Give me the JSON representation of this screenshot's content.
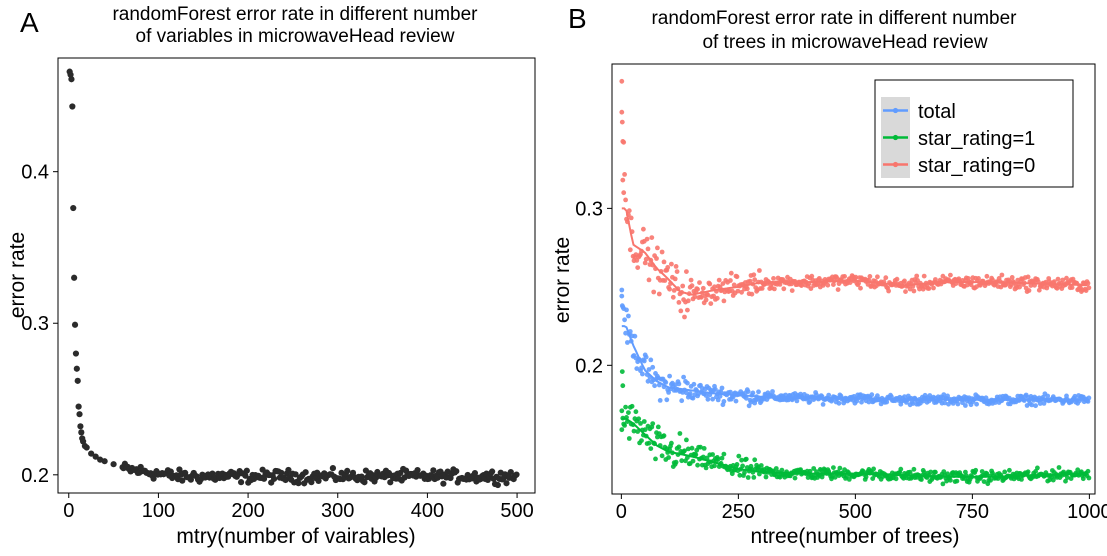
{
  "chart_data": [
    {
      "panel": "A",
      "type": "scatter",
      "title": [
        "randomForest error rate in different number",
        "of  variables in microwaveHead review"
      ],
      "xlabel": "mtry(number of vairables)",
      "ylabel": "error rate",
      "xlim": [
        -12,
        520
      ],
      "ylim": [
        0.188,
        0.475
      ],
      "xticks": [
        0,
        100,
        200,
        300,
        400,
        500
      ],
      "yticks": [
        0.2,
        0.3,
        0.4
      ],
      "ytick_labels": [
        "0.2",
        "0.3",
        "0.4"
      ],
      "grid": false,
      "color": "#2b2b2b",
      "series": [
        {
          "x": [
            1,
            2,
            3,
            4,
            5,
            6,
            7,
            8,
            9,
            10,
            11,
            12,
            13,
            14,
            15,
            16,
            18,
            20,
            25,
            30,
            35,
            40,
            50,
            60
          ],
          "values": [
            0.466,
            0.464,
            0.461,
            0.443,
            0.376,
            0.33,
            0.299,
            0.28,
            0.27,
            0.262,
            0.245,
            0.24,
            0.232,
            0.228,
            0.224,
            0.222,
            0.219,
            0.218,
            0.214,
            0.212,
            0.21,
            0.209,
            0.207,
            0.205
          ]
        }
      ],
      "noisy_tail": {
        "x_from": 61,
        "x_to": 500,
        "step": 1.6,
        "start": 0.204,
        "level": 0.199,
        "spread": 0.0055
      }
    },
    {
      "panel": "B",
      "type": "line",
      "title": [
        "randomForest error rate in different number",
        "of trees in microwaveHead review"
      ],
      "xlabel": "ntree(number of trees)",
      "ylabel": "error rate",
      "xlim": [
        -20,
        1012
      ],
      "ylim": [
        0.118,
        0.392
      ],
      "xticks": [
        0,
        250,
        500,
        750,
        1000
      ],
      "yticks": [
        0.2,
        0.3
      ],
      "ytick_labels": [
        "0.2",
        "0.3"
      ],
      "grid": false,
      "legend_position": "top-right",
      "series": [
        {
          "name": "total",
          "color": "#619cff",
          "x": [
            0,
            10,
            25,
            50,
            75,
            100,
            150,
            200,
            250,
            300,
            400,
            500,
            600,
            700,
            800,
            900,
            1000
          ],
          "values": [
            0.247,
            0.225,
            0.213,
            0.197,
            0.19,
            0.186,
            0.184,
            0.182,
            0.181,
            0.18,
            0.179,
            0.179,
            0.178,
            0.178,
            0.178,
            0.178,
            0.178
          ],
          "noise": 0.0028
        },
        {
          "name": "star_rating=1",
          "color": "#00ba38",
          "x": [
            0,
            10,
            25,
            50,
            75,
            100,
            150,
            200,
            250,
            300,
            400,
            500,
            600,
            700,
            800,
            900,
            1000
          ],
          "values": [
            0.168,
            0.166,
            0.163,
            0.156,
            0.149,
            0.145,
            0.142,
            0.138,
            0.134,
            0.132,
            0.131,
            0.131,
            0.13,
            0.129,
            0.129,
            0.13,
            0.131
          ],
          "noise": 0.0035
        },
        {
          "name": "star_rating=0",
          "color": "#f8766d",
          "x": [
            0,
            10,
            25,
            50,
            75,
            100,
            125,
            150,
            200,
            250,
            300,
            400,
            500,
            600,
            700,
            800,
            900,
            1000
          ],
          "values": [
            0.38,
            0.3,
            0.277,
            0.272,
            0.262,
            0.255,
            0.247,
            0.245,
            0.248,
            0.25,
            0.253,
            0.253,
            0.254,
            0.251,
            0.253,
            0.253,
            0.252,
            0.251
          ],
          "noise": 0.004
        }
      ]
    }
  ]
}
